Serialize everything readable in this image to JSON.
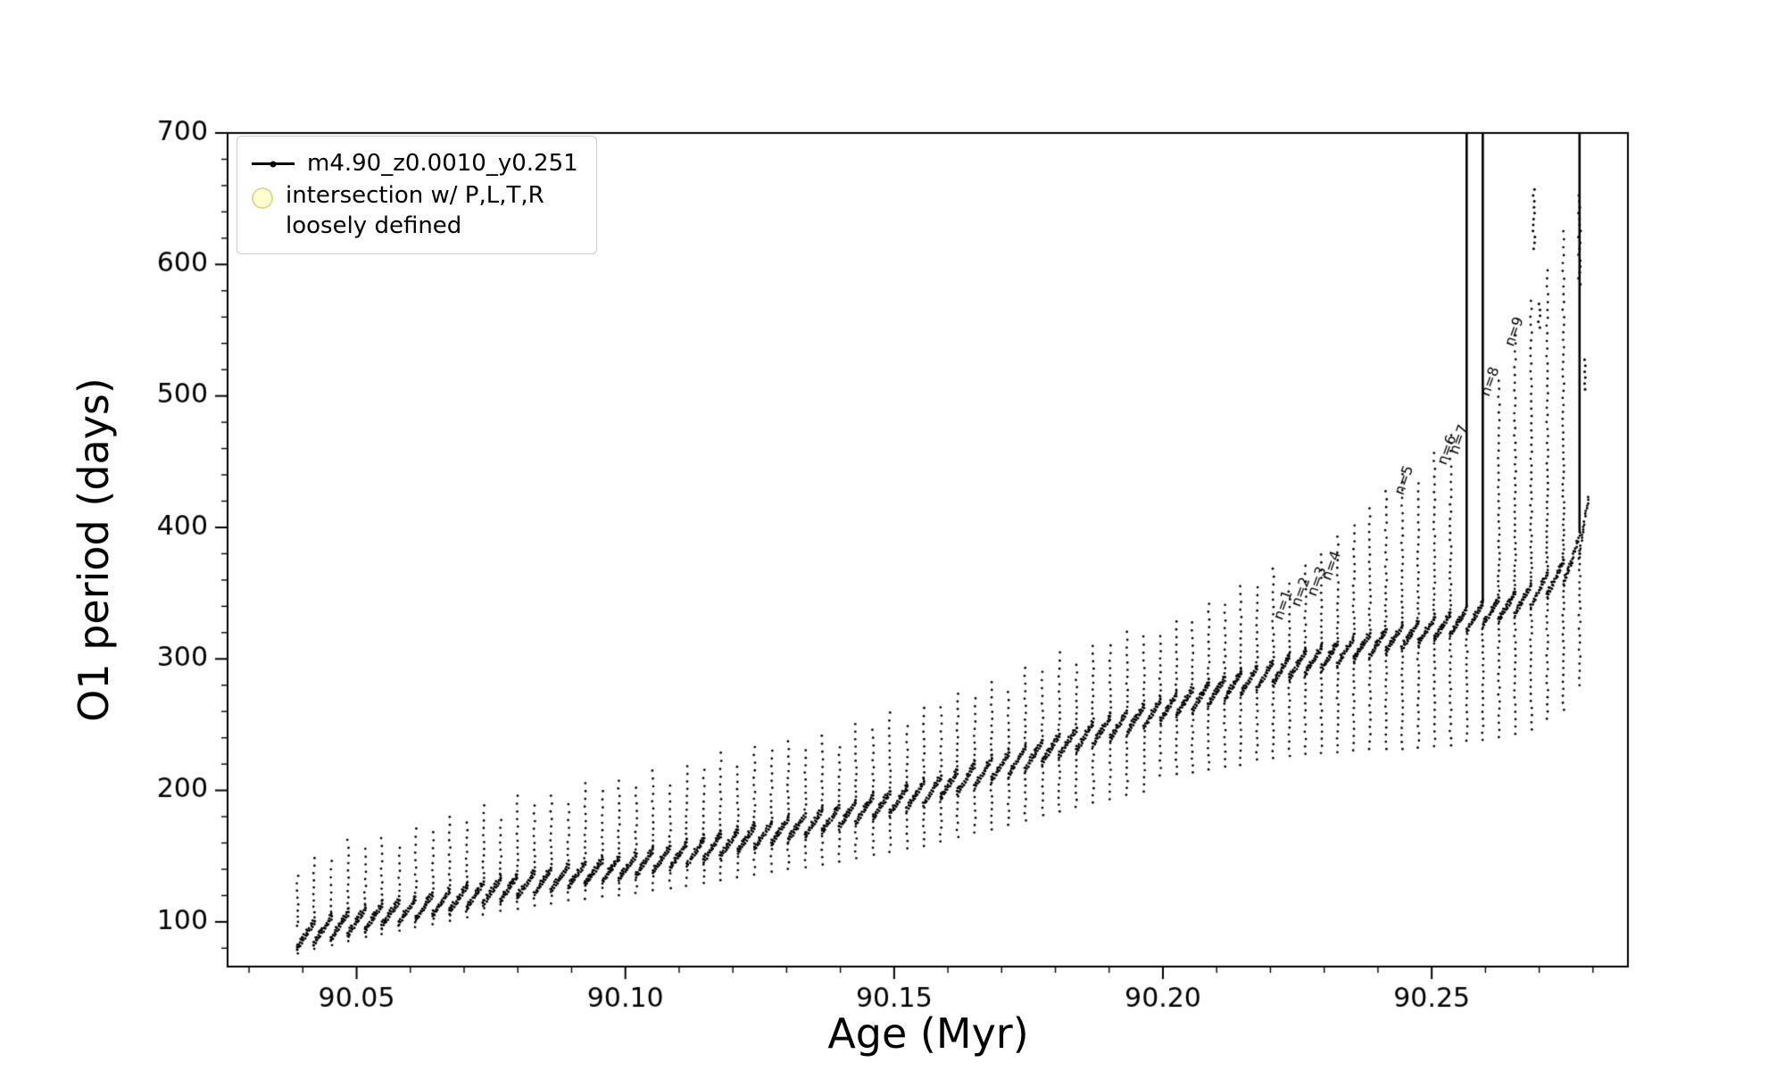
{
  "chart_data": {
    "type": "scatter",
    "title": "",
    "xlabel": "Age (Myr)",
    "ylabel": "O1 period (days)",
    "xlim": [
      90.026,
      90.2865
    ],
    "ylim": [
      66,
      700
    ],
    "xticks": [
      90.05,
      90.1,
      90.15,
      90.2,
      90.25
    ],
    "xtick_labels": [
      "90.05",
      "90.10",
      "90.15",
      "90.20",
      "90.25"
    ],
    "x_minor_step": 0.01,
    "yticks": [
      100,
      200,
      300,
      400,
      500,
      600,
      700
    ],
    "ytick_labels": [
      "100",
      "200",
      "300",
      "400",
      "500",
      "600",
      "700"
    ],
    "y_minor_step": 20,
    "grid": false,
    "point_color": "#000000",
    "legend_position": "upper-left",
    "legend": [
      {
        "label": "m4.90_z0.0010_y0.251",
        "marker": "line-dot",
        "color": "#000000"
      },
      {
        "label": "intersection w/ P,L,T,R\nloosely defined",
        "marker": "circle",
        "color": "#ffffaa"
      }
    ],
    "band_height": 16,
    "baseline": [
      [
        90.036,
        78
      ],
      [
        90.04,
        82
      ],
      [
        90.045,
        88
      ],
      [
        90.05,
        93
      ],
      [
        90.055,
        98
      ],
      [
        90.06,
        102
      ],
      [
        90.065,
        107
      ],
      [
        90.07,
        111
      ],
      [
        90.075,
        116
      ],
      [
        90.08,
        120
      ],
      [
        90.085,
        124
      ],
      [
        90.09,
        128
      ],
      [
        90.095,
        131
      ],
      [
        90.1,
        134
      ],
      [
        90.105,
        139
      ],
      [
        90.11,
        143
      ],
      [
        90.115,
        148
      ],
      [
        90.12,
        153
      ],
      [
        90.125,
        158
      ],
      [
        90.13,
        163
      ],
      [
        90.135,
        168
      ],
      [
        90.14,
        173
      ],
      [
        90.145,
        179
      ],
      [
        90.15,
        184
      ],
      [
        90.155,
        190
      ],
      [
        90.16,
        197
      ],
      [
        90.165,
        204
      ],
      [
        90.17,
        211
      ],
      [
        90.175,
        218
      ],
      [
        90.18,
        226
      ],
      [
        90.185,
        233
      ],
      [
        90.19,
        240
      ],
      [
        90.195,
        247
      ],
      [
        90.2,
        254
      ],
      [
        90.205,
        261
      ],
      [
        90.21,
        268
      ],
      [
        90.215,
        275
      ],
      [
        90.22,
        282
      ],
      [
        90.225,
        288
      ],
      [
        90.23,
        294
      ],
      [
        90.235,
        300
      ],
      [
        90.24,
        305
      ],
      [
        90.245,
        310
      ],
      [
        90.25,
        315
      ],
      [
        90.255,
        321
      ],
      [
        90.26,
        327
      ],
      [
        90.265,
        334
      ],
      [
        90.268,
        340
      ],
      [
        90.271,
        348
      ],
      [
        90.274,
        357
      ],
      [
        90.276,
        366
      ],
      [
        90.2775,
        380
      ],
      [
        90.279,
        405
      ]
    ],
    "pulses": [
      [
        90.039,
        38,
        5
      ],
      [
        90.0421,
        48,
        5
      ],
      [
        90.0453,
        42,
        6
      ],
      [
        90.0484,
        55,
        6
      ],
      [
        90.0516,
        45,
        6
      ],
      [
        90.0547,
        50,
        7
      ],
      [
        90.0579,
        40,
        7
      ],
      [
        90.061,
        52,
        7
      ],
      [
        90.0642,
        46,
        8
      ],
      [
        90.0673,
        55,
        8
      ],
      [
        90.0705,
        48,
        8
      ],
      [
        90.0736,
        58,
        9
      ],
      [
        90.0768,
        44,
        9
      ],
      [
        90.0799,
        60,
        10
      ],
      [
        90.0831,
        50,
        10
      ],
      [
        90.0862,
        55,
        11
      ],
      [
        90.0894,
        46,
        11
      ],
      [
        90.0925,
        60,
        12
      ],
      [
        90.0957,
        52,
        12
      ],
      [
        90.0988,
        58,
        13
      ],
      [
        90.102,
        50,
        14
      ],
      [
        90.1051,
        60,
        15
      ],
      [
        90.1083,
        46,
        16
      ],
      [
        90.1114,
        58,
        17
      ],
      [
        90.1146,
        52,
        18
      ],
      [
        90.1177,
        62,
        19
      ],
      [
        90.1209,
        48,
        20
      ],
      [
        90.124,
        60,
        21
      ],
      [
        90.1272,
        54,
        22
      ],
      [
        90.1303,
        58,
        23
      ],
      [
        90.1335,
        48,
        25
      ],
      [
        90.1366,
        56,
        26
      ],
      [
        90.1398,
        44,
        27
      ],
      [
        90.1429,
        58,
        28
      ],
      [
        90.1461,
        50,
        29
      ],
      [
        90.1492,
        60,
        30
      ],
      [
        90.1524,
        46,
        31
      ],
      [
        90.1555,
        56,
        33
      ],
      [
        90.1587,
        52,
        34
      ],
      [
        90.1618,
        58,
        35
      ],
      [
        90.165,
        50,
        36
      ],
      [
        90.1681,
        58,
        38
      ],
      [
        90.1713,
        46,
        39
      ],
      [
        90.1744,
        60,
        40
      ],
      [
        90.1776,
        52,
        41
      ],
      [
        90.1807,
        62,
        43
      ],
      [
        90.1839,
        48,
        44
      ],
      [
        90.187,
        58,
        45
      ],
      [
        90.1902,
        54,
        47
      ],
      [
        90.1933,
        60,
        48
      ],
      [
        90.1965,
        52,
        50
      ],
      [
        90.1995,
        48,
        42
      ],
      [
        90.2025,
        55,
        45
      ],
      [
        90.2055,
        50,
        48
      ],
      [
        90.2085,
        60,
        50
      ],
      [
        90.2115,
        55,
        52
      ],
      [
        90.2145,
        65,
        55
      ],
      [
        90.2175,
        60,
        55
      ],
      [
        90.2205,
        70,
        58
      ],
      [
        90.2235,
        55,
        60
      ],
      [
        90.2265,
        65,
        62
      ],
      [
        90.2295,
        70,
        65
      ],
      [
        90.2325,
        80,
        68
      ],
      [
        90.2355,
        85,
        70
      ],
      [
        90.2385,
        95,
        72
      ],
      [
        90.2415,
        105,
        75
      ],
      [
        90.2445,
        115,
        78
      ],
      [
        90.2475,
        105,
        80
      ],
      [
        90.2505,
        125,
        82
      ],
      [
        90.2535,
        135,
        85
      ],
      [
        90.2565,
        999,
        85
      ],
      [
        90.2595,
        999,
        88
      ],
      [
        90.2625,
        165,
        90
      ],
      [
        90.2655,
        195,
        92
      ],
      [
        90.2685,
        215,
        95
      ],
      [
        90.2715,
        230,
        95
      ],
      [
        90.2745,
        250,
        98
      ],
      [
        90.2775,
        999,
        100
      ]
    ],
    "clusters": [
      {
        "x": 90.269,
        "y1": 612,
        "y2": 660
      },
      {
        "x": 90.2775,
        "y1": 585,
        "y2": 655
      },
      {
        "x": 90.2785,
        "y1": 505,
        "y2": 530
      },
      {
        "x": 90.27,
        "y1": 552,
        "y2": 570
      }
    ],
    "annotations": [
      {
        "label": "n=1",
        "x": 90.2215,
        "y": 330
      },
      {
        "label": "n=2",
        "x": 90.2248,
        "y": 340
      },
      {
        "label": "n=3",
        "x": 90.2278,
        "y": 348
      },
      {
        "label": "n=4",
        "x": 90.2305,
        "y": 360
      },
      {
        "label": "n=5",
        "x": 90.244,
        "y": 425
      },
      {
        "label": "n=6",
        "x": 90.252,
        "y": 448
      },
      {
        "label": "n=7",
        "x": 90.2542,
        "y": 456
      },
      {
        "label": "n=8",
        "x": 90.26,
        "y": 500
      },
      {
        "label": "n=9",
        "x": 90.2645,
        "y": 538
      }
    ]
  }
}
